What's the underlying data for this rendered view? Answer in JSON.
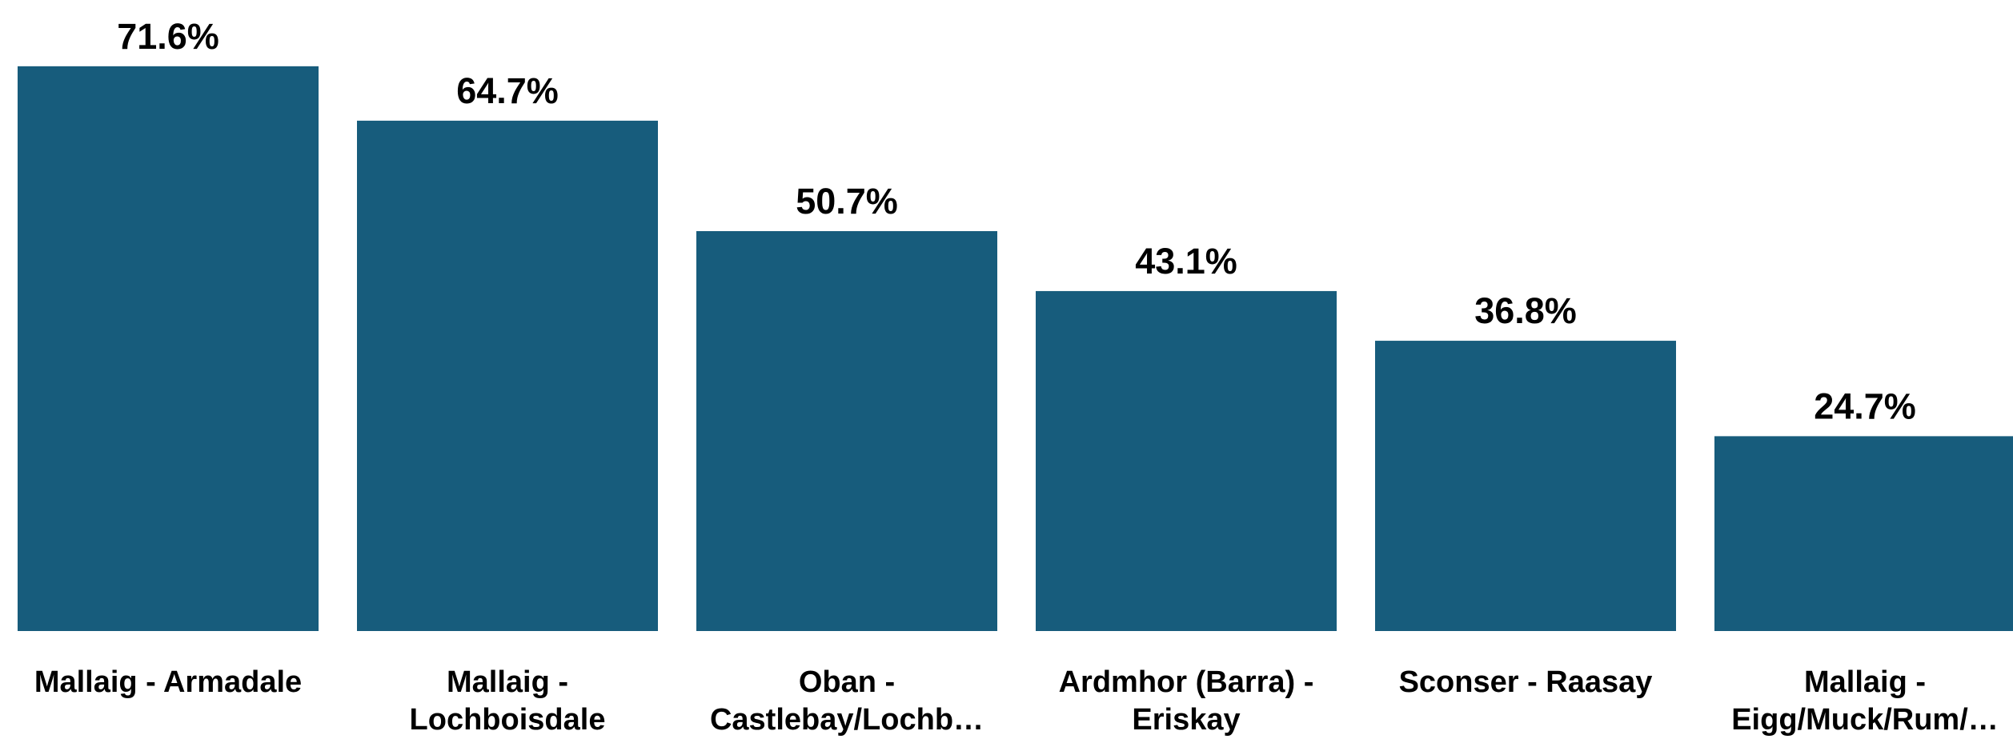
{
  "chart_data": {
    "type": "bar",
    "categories": [
      "Mallaig - Armadale",
      "Mallaig - Lochboisdale",
      "Oban - Castlebay/Lochb…",
      "Ardmhor (Barra) - Eriskay",
      "Sconser - Raasay",
      "Mallaig - Eigg/Muck/Rum/…"
    ],
    "values": [
      71.6,
      64.7,
      50.7,
      43.1,
      36.8,
      24.7
    ],
    "value_labels": [
      "71.6%",
      "64.7%",
      "50.7%",
      "43.1%",
      "36.8%",
      "24.7%"
    ],
    "color": "#175c7c",
    "ylim": [
      0,
      80
    ]
  }
}
